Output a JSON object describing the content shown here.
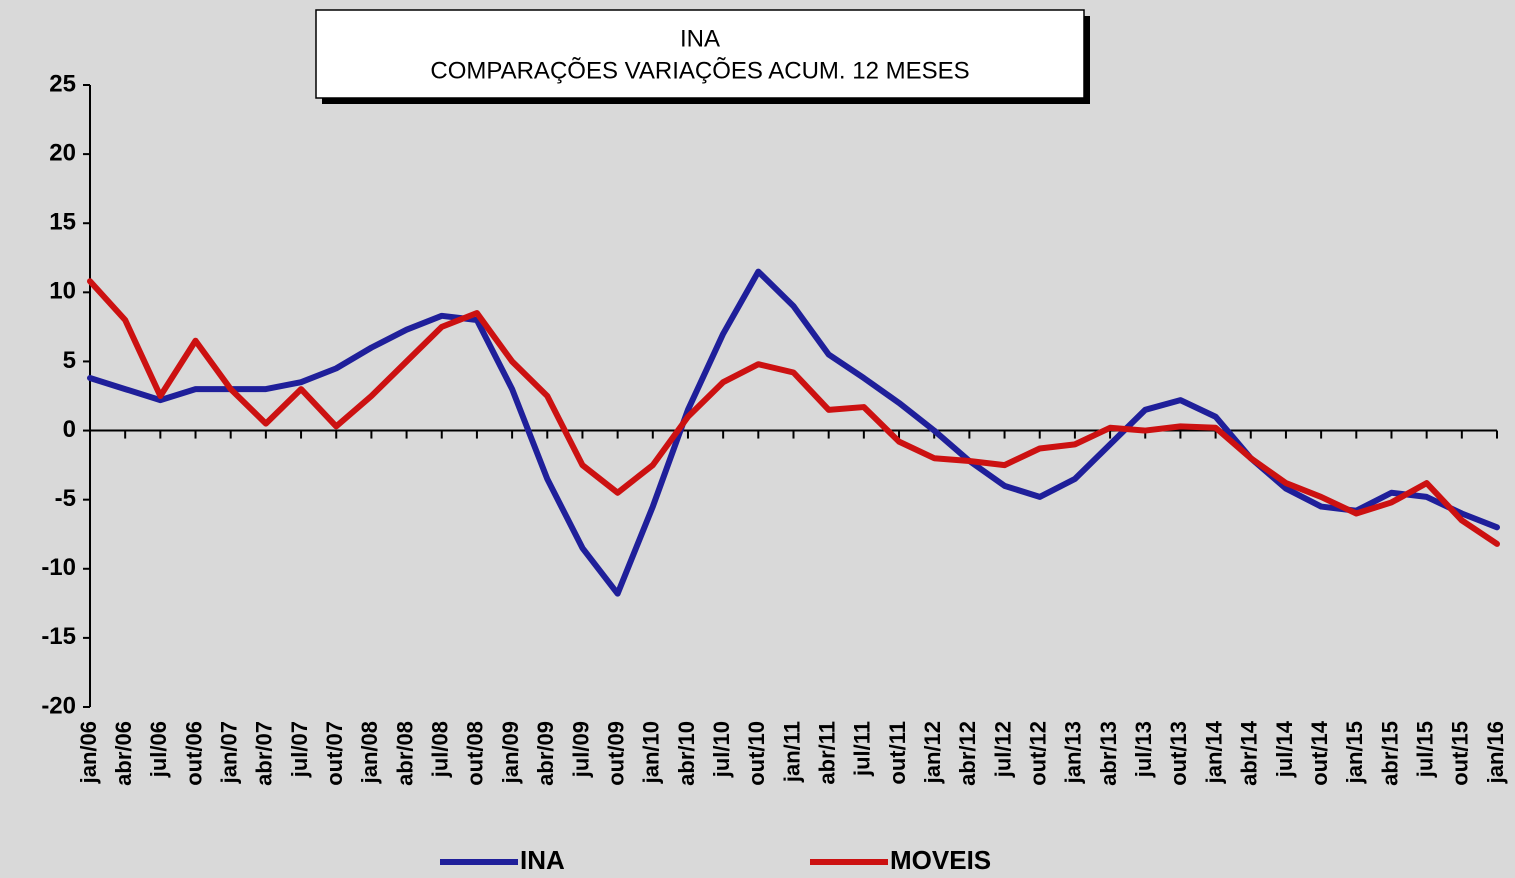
{
  "chart_data": {
    "type": "line",
    "title": "INA",
    "subtitle": "COMPARAÇÕES VARIAÇÕES ACUM. 12 MESES",
    "categories": [
      "jan/06",
      "abr/06",
      "jul/06",
      "out/06",
      "jan/07",
      "abr/07",
      "jul/07",
      "out/07",
      "jan/08",
      "abr/08",
      "jul/08",
      "out/08",
      "jan/09",
      "abr/09",
      "jul/09",
      "out/09",
      "jan/10",
      "abr/10",
      "jul/10",
      "out/10",
      "jan/11",
      "abr/11",
      "jul/11",
      "out/11",
      "jan/12",
      "abr/12",
      "jul/12",
      "out/12",
      "jan/13",
      "abr/13",
      "jul/13",
      "out/13",
      "jan/14",
      "abr/14",
      "jul/14",
      "out/14",
      "jan/15",
      "abr/15",
      "jul/15",
      "out/15",
      "jan/16"
    ],
    "series": [
      {
        "name": "INA",
        "color": "#1f1f9a",
        "values": [
          3.8,
          3.0,
          2.2,
          3.0,
          3.0,
          3.0,
          3.5,
          4.5,
          6.0,
          7.3,
          8.3,
          8.0,
          3.0,
          -3.5,
          -8.5,
          -11.8,
          -5.5,
          1.5,
          7.0,
          11.5,
          9.0,
          5.5,
          3.8,
          2.0,
          0.0,
          -2.2,
          -4.0,
          -4.8,
          -3.5,
          -1.0,
          1.5,
          2.2,
          1.0,
          -2.0,
          -4.2,
          -5.5,
          -5.8,
          -4.5,
          -4.8,
          -6.0,
          -7.0
        ]
      },
      {
        "name": "MOVEIS",
        "color": "#cc1111",
        "values": [
          10.8,
          8.0,
          2.5,
          6.5,
          3.0,
          0.5,
          3.0,
          0.3,
          2.5,
          5.0,
          7.5,
          8.5,
          5.0,
          2.5,
          -2.5,
          -4.5,
          -2.5,
          1.0,
          3.5,
          4.8,
          4.2,
          1.5,
          1.7,
          -0.8,
          -2.0,
          -2.2,
          -2.5,
          -1.3,
          -1.0,
          0.2,
          0.0,
          0.3,
          0.2,
          -2.0,
          -3.8,
          -4.8,
          -6.0,
          -5.2,
          -3.8,
          -6.5,
          -8.2
        ]
      }
    ],
    "ylim": [
      -20,
      25
    ],
    "yticks": [
      25,
      20,
      15,
      10,
      5,
      0,
      -5,
      -10,
      -15,
      -20
    ],
    "grid": false,
    "legend": "bottom"
  }
}
